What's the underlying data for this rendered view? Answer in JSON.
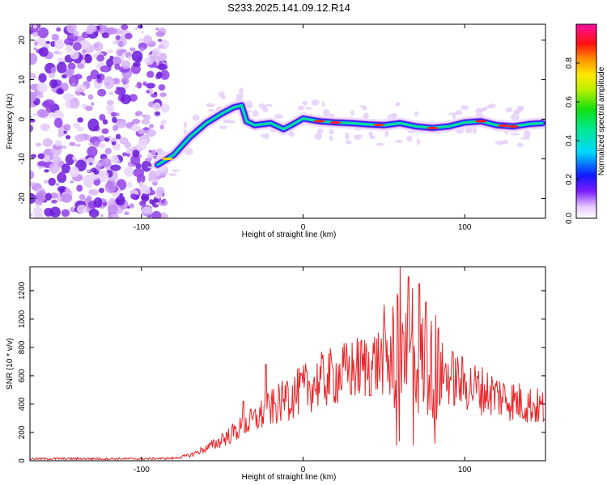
{
  "title": "S233.2025.141.09.12.R14",
  "chart_data": [
    {
      "type": "heatmap",
      "xlabel": "Height of straight line (km)",
      "ylabel": "Frequency (Hz)",
      "xlim": [
        -169,
        150
      ],
      "ylim": [
        -25,
        24
      ],
      "xticks": [
        -100,
        0,
        100
      ],
      "yticks": [
        -20,
        -10,
        0,
        10,
        20
      ],
      "grid": false,
      "ridge": {
        "x": [
          -90,
          -80,
          -70,
          -60,
          -50,
          -43,
          -38,
          -35,
          -30,
          -20,
          -12,
          -5,
          0,
          10,
          20,
          30,
          40,
          50,
          60,
          70,
          80,
          90,
          100,
          110,
          120,
          130,
          140,
          148
        ],
        "y": [
          -11.5,
          -9,
          -4.5,
          -1,
          1.5,
          3,
          3.5,
          -0.5,
          -1.5,
          -1,
          -2.5,
          -1,
          0.2,
          -0.5,
          -0.8,
          -1,
          -1.3,
          -1.5,
          -1,
          -1.8,
          -2.2,
          -1.8,
          -0.8,
          -0.5,
          -1.5,
          -1.8,
          -1.2,
          -1
        ]
      },
      "colorbar": {
        "label": "Normalized spectral amplitude",
        "range": [
          0,
          1
        ],
        "ticks": [
          0.0,
          0.2,
          0.4,
          0.6,
          0.8
        ]
      }
    },
    {
      "type": "line",
      "xlabel": "Height of straight line (km)",
      "ylabel": "SNR (10 * v/v)",
      "xlim": [
        -169,
        150
      ],
      "ylim": [
        0,
        1370
      ],
      "xticks": [
        -100,
        0,
        100
      ],
      "yticks": [
        0,
        200,
        400,
        600,
        800,
        1000,
        1200
      ],
      "series": [
        {
          "color": "#e8262a",
          "envelope": {
            "x": [
              -169,
              -100,
              -80,
              -70,
              -60,
              -50,
              -40,
              -30,
              -20,
              -10,
              0,
              10,
              20,
              30,
              40,
              50,
              55,
              60,
              65,
              70,
              75,
              80,
              90,
              100,
              110,
              120,
              130,
              140,
              150
            ],
            "y": [
              15,
              15,
              18,
              40,
              90,
              150,
              230,
              300,
              380,
              450,
              520,
              580,
              620,
              660,
              700,
              740,
              760,
              780,
              770,
              760,
              720,
              680,
              620,
              560,
              520,
              480,
              440,
              410,
              380
            ]
          },
          "peaks": {
            "x": [
              -50,
              -37,
              -23,
              -10,
              58,
              60,
              62,
              65,
              68,
              72,
              76,
              82
            ],
            "y": [
              190,
              420,
              680,
              560,
              1180,
              1370,
              900,
              1300,
              1220,
              1250,
              1120,
              1030
            ]
          }
        }
      ]
    }
  ]
}
